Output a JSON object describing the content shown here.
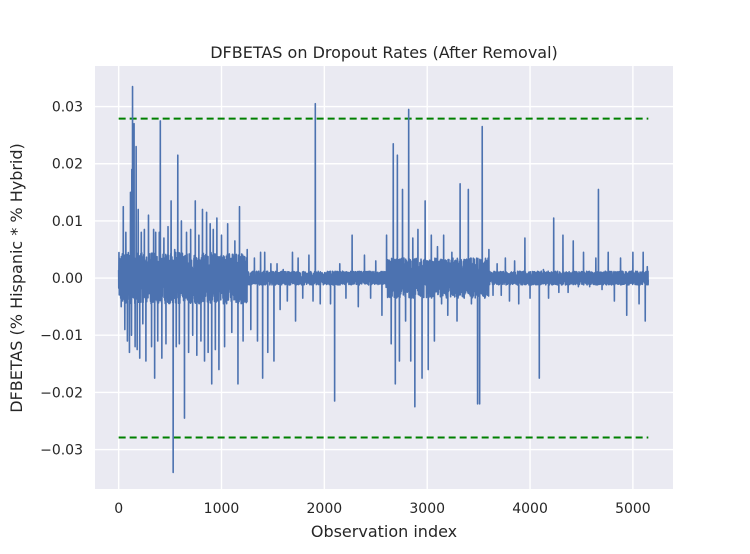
{
  "chart_data": {
    "type": "line",
    "title": "DFBETAS on Dropout Rates (After Removal)",
    "xlabel": "Observation index",
    "ylabel": "DFBETAS (% Hispanic * % Hybrid)",
    "xlim": [
      -230,
      5390
    ],
    "ylim": [
      -0.0369,
      0.0371
    ],
    "xticks": [
      0,
      1000,
      2000,
      3000,
      4000,
      5000
    ],
    "yticks": [
      -0.03,
      -0.02,
      -0.01,
      0.0,
      0.01,
      0.02,
      0.03
    ],
    "ytick_labels": [
      "−0.03",
      "−0.02",
      "−0.01",
      "0.00",
      "0.01",
      "0.02",
      "0.03"
    ],
    "grid": true,
    "background": "#eaeaf2",
    "line_color": "#4c72b0",
    "threshold_color": "#008000",
    "thresholds": [
      0.0279,
      -0.0279
    ],
    "threshold_x_range": [
      0,
      5150
    ],
    "series_length": 5150,
    "spikes": [
      [
        15,
        0.003
      ],
      [
        25,
        -0.005
      ],
      [
        40,
        -0.004
      ],
      [
        45,
        0.0125
      ],
      [
        60,
        -0.009
      ],
      [
        70,
        0.008
      ],
      [
        85,
        -0.011
      ],
      [
        95,
        0.0025
      ],
      [
        105,
        -0.013
      ],
      [
        115,
        0.015
      ],
      [
        125,
        -0.01
      ],
      [
        128,
        0.019
      ],
      [
        135,
        0.0335
      ],
      [
        145,
        0.026
      ],
      [
        150,
        0.027
      ],
      [
        160,
        -0.012
      ],
      [
        170,
        0.023
      ],
      [
        180,
        -0.0125
      ],
      [
        190,
        0.012
      ],
      [
        205,
        -0.014
      ],
      [
        220,
        0.008
      ],
      [
        235,
        -0.008
      ],
      [
        250,
        0.0085
      ],
      [
        265,
        -0.0145
      ],
      [
        290,
        0.011
      ],
      [
        320,
        -0.012
      ],
      [
        340,
        0.0085
      ],
      [
        350,
        -0.0175
      ],
      [
        360,
        0.008
      ],
      [
        380,
        -0.011
      ],
      [
        395,
        0.008
      ],
      [
        405,
        0.0275
      ],
      [
        420,
        -0.014
      ],
      [
        440,
        0.007
      ],
      [
        460,
        -0.0115
      ],
      [
        480,
        0.009
      ],
      [
        500,
        -0.0015
      ],
      [
        510,
        0.0135
      ],
      [
        530,
        -0.034
      ],
      [
        545,
        0.005
      ],
      [
        560,
        -0.012
      ],
      [
        575,
        0.0215
      ],
      [
        590,
        -0.0115
      ],
      [
        610,
        0.01
      ],
      [
        640,
        -0.0245
      ],
      [
        660,
        0.008
      ],
      [
        680,
        -0.013
      ],
      [
        700,
        0.0085
      ],
      [
        720,
        -0.01
      ],
      [
        745,
        0.0135
      ],
      [
        760,
        -0.0135
      ],
      [
        780,
        0.0075
      ],
      [
        800,
        -0.011
      ],
      [
        815,
        0.012
      ],
      [
        835,
        -0.0145
      ],
      [
        855,
        0.0115
      ],
      [
        870,
        -0.013
      ],
      [
        890,
        0.0095
      ],
      [
        905,
        -0.0185
      ],
      [
        920,
        0.0085
      ],
      [
        940,
        -0.0125
      ],
      [
        955,
        0.0105
      ],
      [
        975,
        -0.016
      ],
      [
        1000,
        0.0075
      ],
      [
        1030,
        -0.012
      ],
      [
        1060,
        0.0095
      ],
      [
        1100,
        -0.0095
      ],
      [
        1130,
        0.0065
      ],
      [
        1160,
        -0.0185
      ],
      [
        1175,
        0.0125
      ],
      [
        1210,
        -0.011
      ],
      [
        1250,
        0.005
      ],
      [
        1285,
        -0.009
      ],
      [
        1320,
        0.0035
      ],
      [
        1350,
        -0.011
      ],
      [
        1380,
        0.0045
      ],
      [
        1400,
        -0.0175
      ],
      [
        1420,
        0.0045
      ],
      [
        1450,
        -0.013
      ],
      [
        1480,
        0.0025
      ],
      [
        1510,
        -0.0145
      ],
      [
        1540,
        0.0025
      ],
      [
        1570,
        -0.0055
      ],
      [
        1600,
        0.0015
      ],
      [
        1640,
        -0.004
      ],
      [
        1690,
        0.0045
      ],
      [
        1720,
        -0.0075
      ],
      [
        1745,
        0.0035
      ],
      [
        1790,
        -0.0035
      ],
      [
        1850,
        0.004
      ],
      [
        1890,
        -0.004
      ],
      [
        1912,
        0.0305
      ],
      [
        1960,
        -0.0045
      ],
      [
        2020,
        0.0005
      ],
      [
        2060,
        -0.0045
      ],
      [
        2100,
        -0.0215
      ],
      [
        2150,
        0.0025
      ],
      [
        2210,
        -0.0035
      ],
      [
        2270,
        0.0075
      ],
      [
        2330,
        -0.005
      ],
      [
        2390,
        0.004
      ],
      [
        2450,
        -0.0035
      ],
      [
        2500,
        0.003
      ],
      [
        2560,
        -0.0065
      ],
      [
        2605,
        0.0075
      ],
      [
        2650,
        -0.0115
      ],
      [
        2670,
        0.0235
      ],
      [
        2690,
        -0.0185
      ],
      [
        2710,
        0.0215
      ],
      [
        2730,
        -0.0145
      ],
      [
        2760,
        0.0155
      ],
      [
        2790,
        -0.0075
      ],
      [
        2820,
        0.0295
      ],
      [
        2840,
        -0.0145
      ],
      [
        2860,
        0.007
      ],
      [
        2880,
        -0.0225
      ],
      [
        2910,
        0.0085
      ],
      [
        2950,
        -0.0175
      ],
      [
        2980,
        0.0135
      ],
      [
        3010,
        -0.016
      ],
      [
        3040,
        0.0075
      ],
      [
        3070,
        -0.011
      ],
      [
        3100,
        0.0055
      ],
      [
        3140,
        -0.0045
      ],
      [
        3160,
        0.0075
      ],
      [
        3200,
        -0.0065
      ],
      [
        3240,
        0.0045
      ],
      [
        3290,
        -0.0075
      ],
      [
        3320,
        0.0165
      ],
      [
        3360,
        -0.0035
      ],
      [
        3400,
        0.0155
      ],
      [
        3430,
        -0.0045
      ],
      [
        3460,
        0.0015
      ],
      [
        3490,
        -0.022
      ],
      [
        3510,
        -0.022
      ],
      [
        3535,
        0.0265
      ],
      [
        3560,
        -0.0035
      ],
      [
        3600,
        0.005
      ],
      [
        3640,
        -0.003
      ],
      [
        3680,
        0.0025
      ],
      [
        3720,
        -0.003
      ],
      [
        3760,
        0.0035
      ],
      [
        3800,
        -0.004
      ],
      [
        3850,
        0.003
      ],
      [
        3890,
        -0.0045
      ],
      [
        3950,
        0.007
      ],
      [
        4000,
        -0.0035
      ],
      [
        4060,
        0.0005
      ],
      [
        4090,
        -0.0175
      ],
      [
        4130,
        0.0015
      ],
      [
        4180,
        -0.0035
      ],
      [
        4230,
        0.0105
      ],
      [
        4280,
        -0.0025
      ],
      [
        4320,
        0.0075
      ],
      [
        4370,
        -0.0025
      ],
      [
        4420,
        0.0065
      ],
      [
        4470,
        -0.0015
      ],
      [
        4520,
        0.0045
      ],
      [
        4580,
        -0.0015
      ],
      [
        4640,
        0.0035
      ],
      [
        4665,
        0.0155
      ],
      [
        4700,
        -0.002
      ],
      [
        4760,
        0.0045
      ],
      [
        4820,
        -0.004
      ],
      [
        4880,
        0.0035
      ],
      [
        4940,
        -0.0065
      ],
      [
        5000,
        0.0045
      ],
      [
        5060,
        -0.0045
      ],
      [
        5100,
        0.0045
      ],
      [
        5120,
        -0.0075
      ],
      [
        5140,
        0.002
      ]
    ]
  }
}
